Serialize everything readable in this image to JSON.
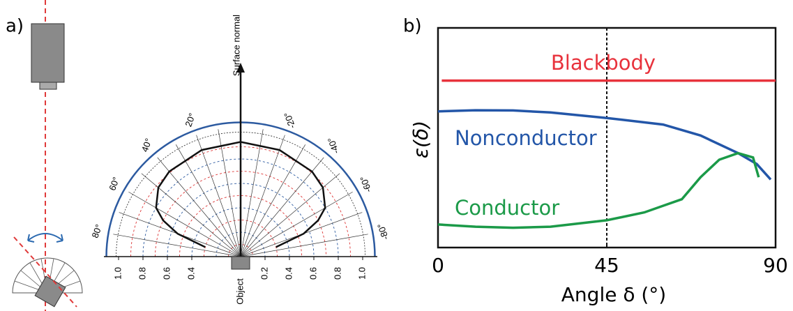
{
  "chart_data": [
    {
      "type": "polar",
      "label": "a)",
      "axis_label": "Surface normal",
      "center_label": "Object",
      "rlim": [
        0,
        1
      ],
      "rticks_left": [
        {
          "value": 1,
          "label": "1.0"
        },
        0.8,
        0.6,
        0.4
      ],
      "rticks_right": [
        0.2,
        0.4,
        0.6,
        0.8,
        {
          "value": 1,
          "label": "1.0"
        }
      ],
      "angle_ticks": [
        {
          "value": 80,
          "label": "80°"
        },
        {
          "value": 60,
          "label": "60°"
        },
        {
          "value": 40,
          "label": "40°"
        },
        {
          "value": 20,
          "label": "20°"
        },
        {
          "value": -20,
          "label": "-20°"
        },
        {
          "value": -40,
          "label": "-40°"
        },
        {
          "value": -60,
          "label": "-60°"
        },
        {
          "value": -80,
          "label": "-80°"
        }
      ],
      "x": [
        75,
        70,
        65,
        60,
        50,
        40,
        20,
        0,
        -20,
        -40,
        -50,
        -60,
        -65,
        -70,
        -75
      ],
      "values": [
        0.3,
        0.55,
        0.7,
        0.8,
        0.88,
        0.91,
        0.93,
        0.94,
        0.93,
        0.91,
        0.88,
        0.8,
        0.7,
        0.55,
        0.3
      ],
      "color": "#111111"
    },
    {
      "type": "line",
      "label": "b)",
      "xlabel": "Angle δ (°)",
      "ylabel": "ε(δ)",
      "xlim": [
        0,
        90
      ],
      "xticks": [
        0,
        45,
        90
      ],
      "ylim": [
        0,
        1
      ],
      "vline": 45,
      "series": [
        {
          "name": "Blackbody",
          "color": "#e8323c",
          "x": [
            1,
            90
          ],
          "values": [
            0.76,
            0.76
          ]
        },
        {
          "name": "Nonconductor",
          "color": "#2356a8",
          "x": [
            0,
            10,
            20,
            30,
            45,
            60,
            70,
            80,
            85,
            88.7
          ],
          "values": [
            0.62,
            0.625,
            0.624,
            0.615,
            0.59,
            0.56,
            0.51,
            0.43,
            0.38,
            0.31
          ]
        },
        {
          "name": "Conductor",
          "color": "#1b9a48",
          "x": [
            0,
            10,
            20,
            30,
            45,
            55,
            60,
            65,
            70,
            75,
            80,
            84,
            85.5
          ],
          "values": [
            0.105,
            0.095,
            0.09,
            0.095,
            0.124,
            0.16,
            0.19,
            0.22,
            0.32,
            0.4,
            0.43,
            0.41,
            0.32
          ]
        }
      ]
    }
  ]
}
